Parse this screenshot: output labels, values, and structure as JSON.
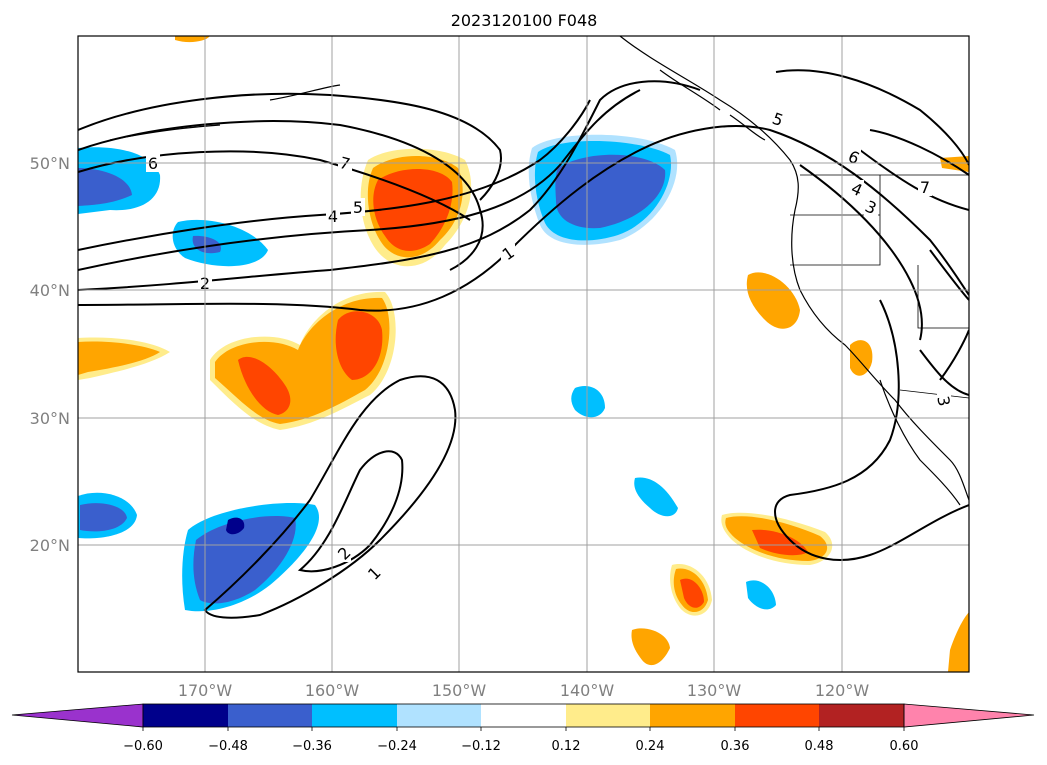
{
  "title": "2023120100 F048",
  "map": {
    "lat_labels": [
      "50°N",
      "40°N",
      "30°N",
      "20°N"
    ],
    "lon_labels": [
      "170°W",
      "160°W",
      "150°W",
      "140°W",
      "130°W",
      "120°W"
    ]
  },
  "colorbar": {
    "ticks": [
      "−0.60",
      "−0.48",
      "−0.36",
      "−0.24",
      "−0.12",
      "0.12",
      "0.24",
      "0.36",
      "0.48",
      "0.60"
    ],
    "colors": [
      "#9a32cd",
      "#00008b",
      "#3a5fcd",
      "#00bfff",
      "#b0e2ff",
      "#ffffff",
      "#ffec8b",
      "#ffa500",
      "#ff4500",
      "#b22222",
      "#ff83ac"
    ]
  },
  "contour_labels": [
    "6",
    "7",
    "5",
    "4",
    "2",
    "1",
    "5",
    "6",
    "4",
    "3",
    "7",
    "2",
    "1",
    "3"
  ]
}
